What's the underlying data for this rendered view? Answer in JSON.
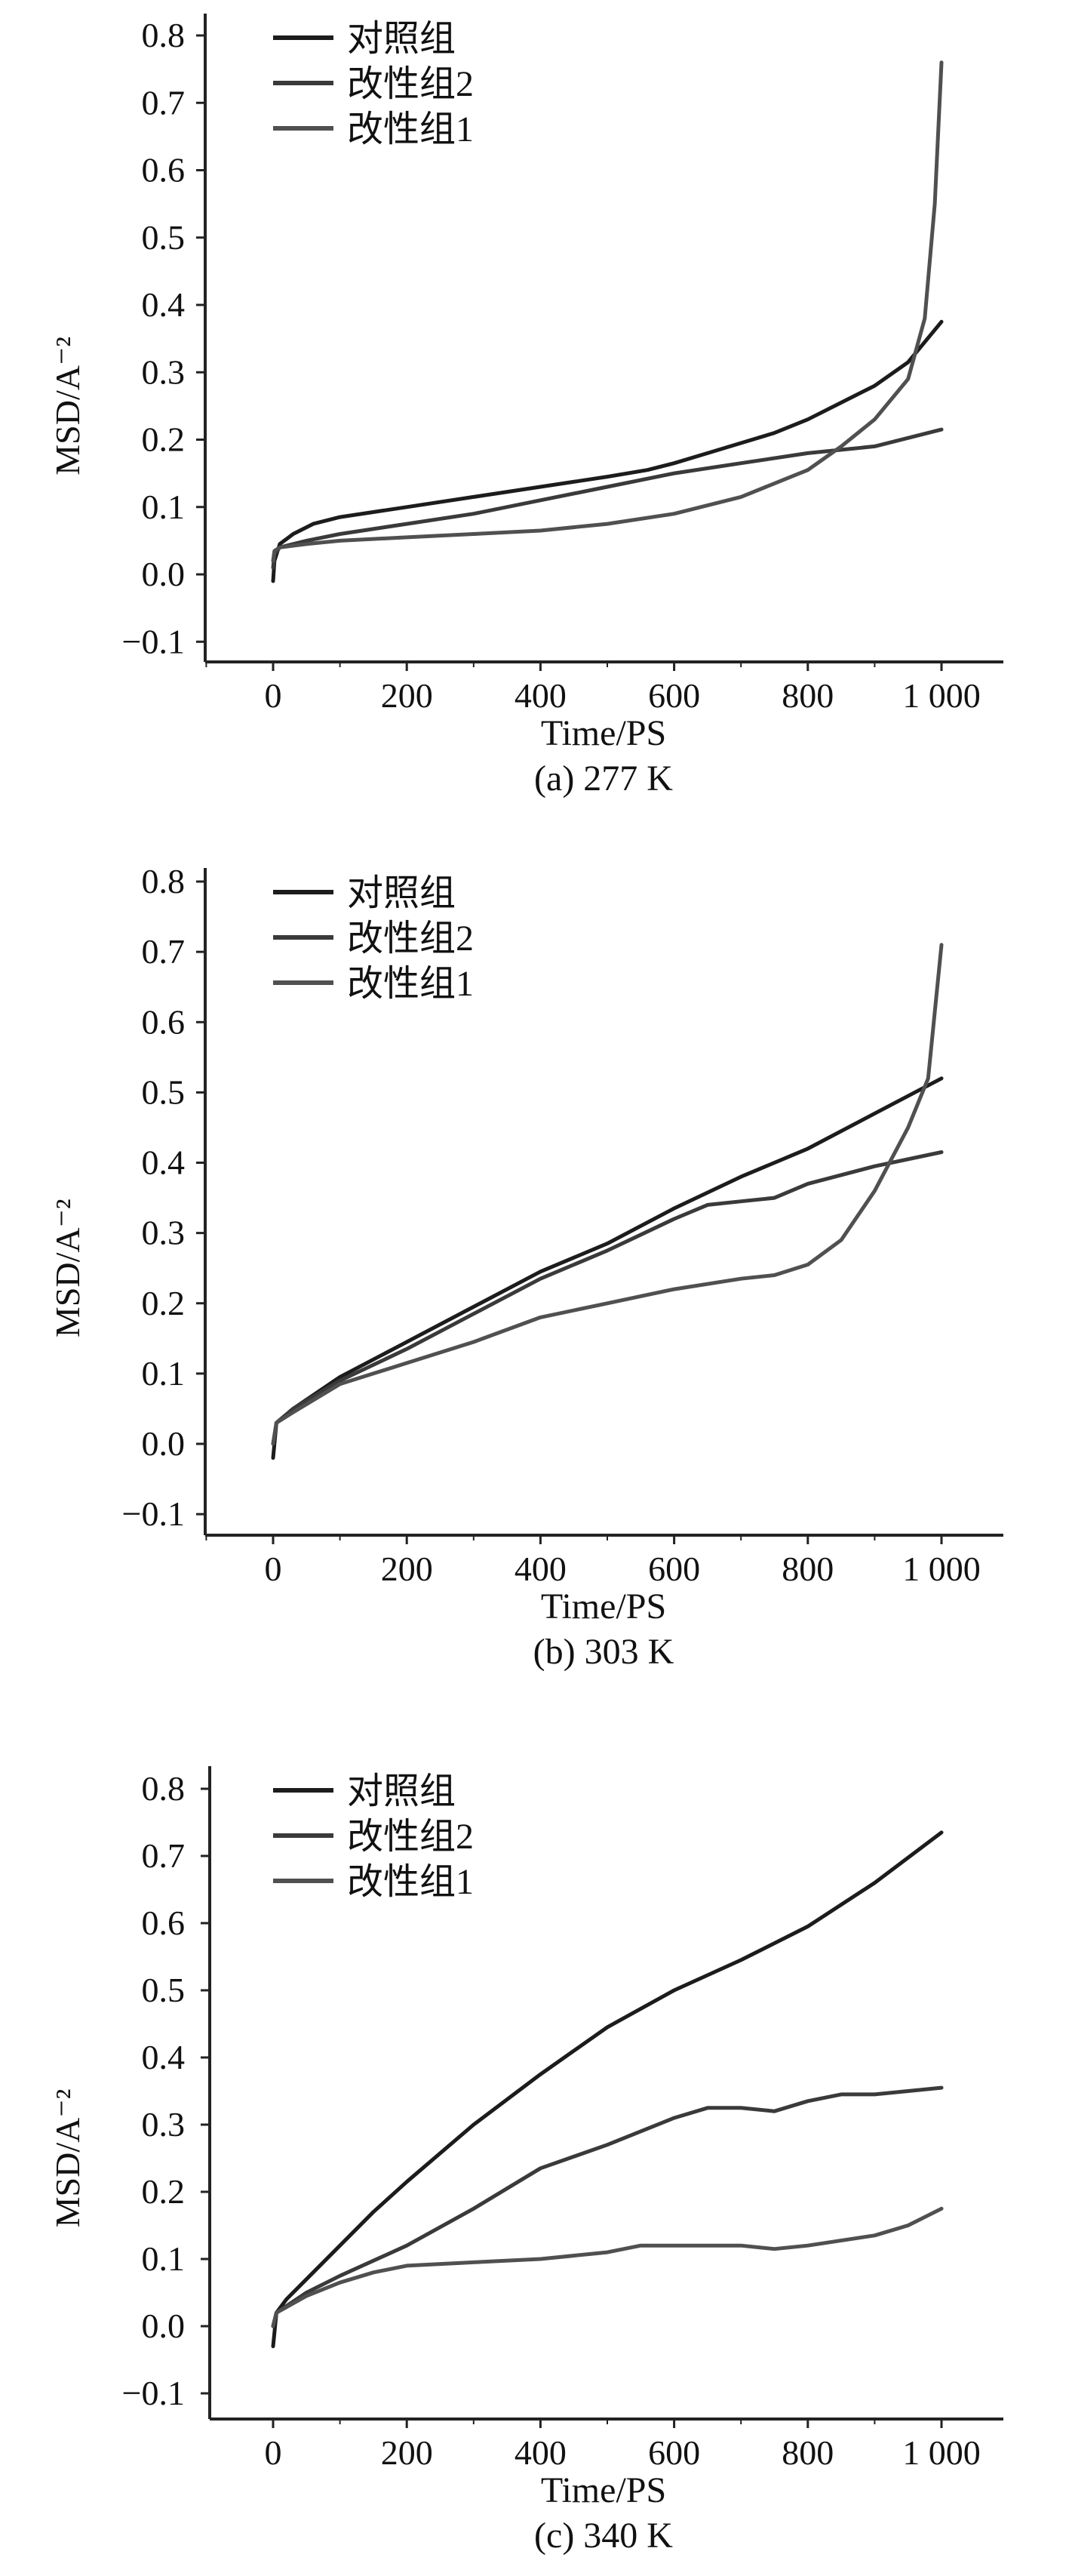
{
  "chart_data": [
    {
      "type": "line",
      "caption": "(a) 277 K",
      "xlabel": "Time/PS",
      "ylabel": "MSD/A⁻²",
      "xlim": [
        -100,
        1100
      ],
      "ylim": [
        -0.13,
        0.84
      ],
      "xticks": [
        0,
        200,
        400,
        600,
        800,
        1000
      ],
      "xtick_labels": [
        "0",
        "200",
        "400",
        "600",
        "800",
        "1 000"
      ],
      "yticks": [
        -0.1,
        0.0,
        0.1,
        0.2,
        0.3,
        0.4,
        0.5,
        0.6,
        0.7,
        0.8
      ],
      "ytick_labels": [
        "−0.1",
        "0.0",
        "0.1",
        "0.2",
        "0.3",
        "0.4",
        "0.5",
        "0.6",
        "0.7",
        "0.8"
      ],
      "legend": {
        "placement": "top-left",
        "entries": [
          "对照组",
          "改性组2",
          "改性组1"
        ]
      },
      "series": [
        {
          "name": "对照组",
          "color": "#1c1c1c",
          "x": [
            0,
            2,
            10,
            30,
            60,
            100,
            200,
            300,
            400,
            500,
            560,
            600,
            650,
            700,
            750,
            800,
            850,
            900,
            950,
            1000
          ],
          "y": [
            -0.01,
            0.02,
            0.045,
            0.06,
            0.075,
            0.085,
            0.1,
            0.115,
            0.13,
            0.145,
            0.155,
            0.165,
            0.18,
            0.195,
            0.21,
            0.23,
            0.255,
            0.28,
            0.315,
            0.375
          ]
        },
        {
          "name": "改性组2",
          "color": "#3a3a3a",
          "x": [
            0,
            2,
            10,
            50,
            100,
            200,
            300,
            400,
            500,
            600,
            700,
            800,
            900,
            1000
          ],
          "y": [
            0.01,
            0.03,
            0.04,
            0.05,
            0.06,
            0.075,
            0.09,
            0.11,
            0.13,
            0.15,
            0.165,
            0.18,
            0.19,
            0.215
          ]
        },
        {
          "name": "改性组1",
          "color": "#505050",
          "x": [
            0,
            2,
            10,
            50,
            100,
            200,
            300,
            400,
            500,
            600,
            700,
            800,
            850,
            900,
            950,
            975,
            990,
            1000
          ],
          "y": [
            0.02,
            0.035,
            0.04,
            0.045,
            0.05,
            0.055,
            0.06,
            0.065,
            0.075,
            0.09,
            0.115,
            0.155,
            0.19,
            0.23,
            0.29,
            0.38,
            0.55,
            0.76
          ]
        }
      ]
    },
    {
      "type": "line",
      "caption": "(b) 303 K",
      "xlabel": "Time/PS",
      "ylabel": "MSD/A⁻²",
      "xlim": [
        -100,
        1100
      ],
      "ylim": [
        -0.13,
        0.84
      ],
      "xticks": [
        0,
        200,
        400,
        600,
        800,
        1000
      ],
      "xtick_labels": [
        "0",
        "200",
        "400",
        "600",
        "800",
        "1 000"
      ],
      "yticks": [
        -0.1,
        0.0,
        0.1,
        0.2,
        0.3,
        0.4,
        0.5,
        0.6,
        0.7,
        0.8
      ],
      "ytick_labels": [
        "−0.1",
        "0.0",
        "0.1",
        "0.2",
        "0.3",
        "0.4",
        "0.5",
        "0.6",
        "0.7",
        "0.8"
      ],
      "legend": {
        "placement": "top-left",
        "entries": [
          "对照组",
          "改性组2",
          "改性组1"
        ]
      },
      "series": [
        {
          "name": "对照组",
          "color": "#1c1c1c",
          "x": [
            0,
            5,
            30,
            100,
            200,
            300,
            400,
            500,
            600,
            700,
            800,
            900,
            1000
          ],
          "y": [
            -0.02,
            0.03,
            0.05,
            0.095,
            0.145,
            0.195,
            0.245,
            0.285,
            0.335,
            0.38,
            0.42,
            0.47,
            0.52
          ]
        },
        {
          "name": "改性组2",
          "color": "#3a3a3a",
          "x": [
            0,
            5,
            30,
            100,
            200,
            300,
            400,
            500,
            600,
            650,
            700,
            750,
            800,
            900,
            1000
          ],
          "y": [
            0.0,
            0.03,
            0.05,
            0.09,
            0.135,
            0.185,
            0.235,
            0.275,
            0.32,
            0.34,
            0.345,
            0.35,
            0.37,
            0.395,
            0.415
          ]
        },
        {
          "name": "改性组1",
          "color": "#505050",
          "x": [
            0,
            5,
            30,
            100,
            200,
            300,
            400,
            500,
            600,
            700,
            750,
            800,
            850,
            900,
            950,
            980,
            1000
          ],
          "y": [
            0.0,
            0.03,
            0.045,
            0.085,
            0.115,
            0.145,
            0.18,
            0.2,
            0.22,
            0.235,
            0.24,
            0.255,
            0.29,
            0.36,
            0.45,
            0.52,
            0.71
          ]
        }
      ]
    },
    {
      "type": "line",
      "caption": "(c) 340 K",
      "xlabel": "Time/PS",
      "ylabel": "MSD/A⁻²",
      "xlim": [
        -100,
        1100
      ],
      "ylim": [
        -0.13,
        0.84
      ],
      "xticks": [
        0,
        200,
        400,
        600,
        800,
        1000
      ],
      "xtick_labels": [
        "0",
        "200",
        "400",
        "600",
        "800",
        "1 000"
      ],
      "yticks": [
        -0.1,
        0.0,
        0.1,
        0.2,
        0.3,
        0.4,
        0.5,
        0.6,
        0.7,
        0.8
      ],
      "ytick_labels": [
        "−0.1",
        "0.0",
        "0.1",
        "0.2",
        "0.3",
        "0.4",
        "0.5",
        "0.6",
        "0.7",
        "0.8"
      ],
      "legend": {
        "placement": "top-left",
        "entries": [
          "对照组",
          "改性组2",
          "改性组1"
        ]
      },
      "series": [
        {
          "name": "对照组",
          "color": "#1c1c1c",
          "x": [
            0,
            5,
            20,
            50,
            100,
            150,
            200,
            300,
            400,
            500,
            600,
            700,
            800,
            900,
            1000
          ],
          "y": [
            -0.03,
            0.02,
            0.04,
            0.07,
            0.12,
            0.17,
            0.215,
            0.3,
            0.375,
            0.445,
            0.5,
            0.545,
            0.595,
            0.66,
            0.735
          ]
        },
        {
          "name": "改性组2",
          "color": "#3a3a3a",
          "x": [
            0,
            5,
            50,
            100,
            200,
            300,
            400,
            500,
            600,
            650,
            700,
            750,
            800,
            850,
            900,
            1000
          ],
          "y": [
            0.0,
            0.02,
            0.05,
            0.075,
            0.12,
            0.175,
            0.235,
            0.27,
            0.31,
            0.325,
            0.325,
            0.32,
            0.335,
            0.345,
            0.345,
            0.355
          ]
        },
        {
          "name": "改性组1",
          "color": "#505050",
          "x": [
            0,
            5,
            50,
            100,
            150,
            200,
            300,
            400,
            500,
            550,
            600,
            700,
            750,
            800,
            900,
            950,
            1000
          ],
          "y": [
            0.0,
            0.02,
            0.045,
            0.065,
            0.08,
            0.09,
            0.095,
            0.1,
            0.11,
            0.12,
            0.12,
            0.12,
            0.115,
            0.12,
            0.135,
            0.15,
            0.175
          ]
        }
      ]
    }
  ]
}
